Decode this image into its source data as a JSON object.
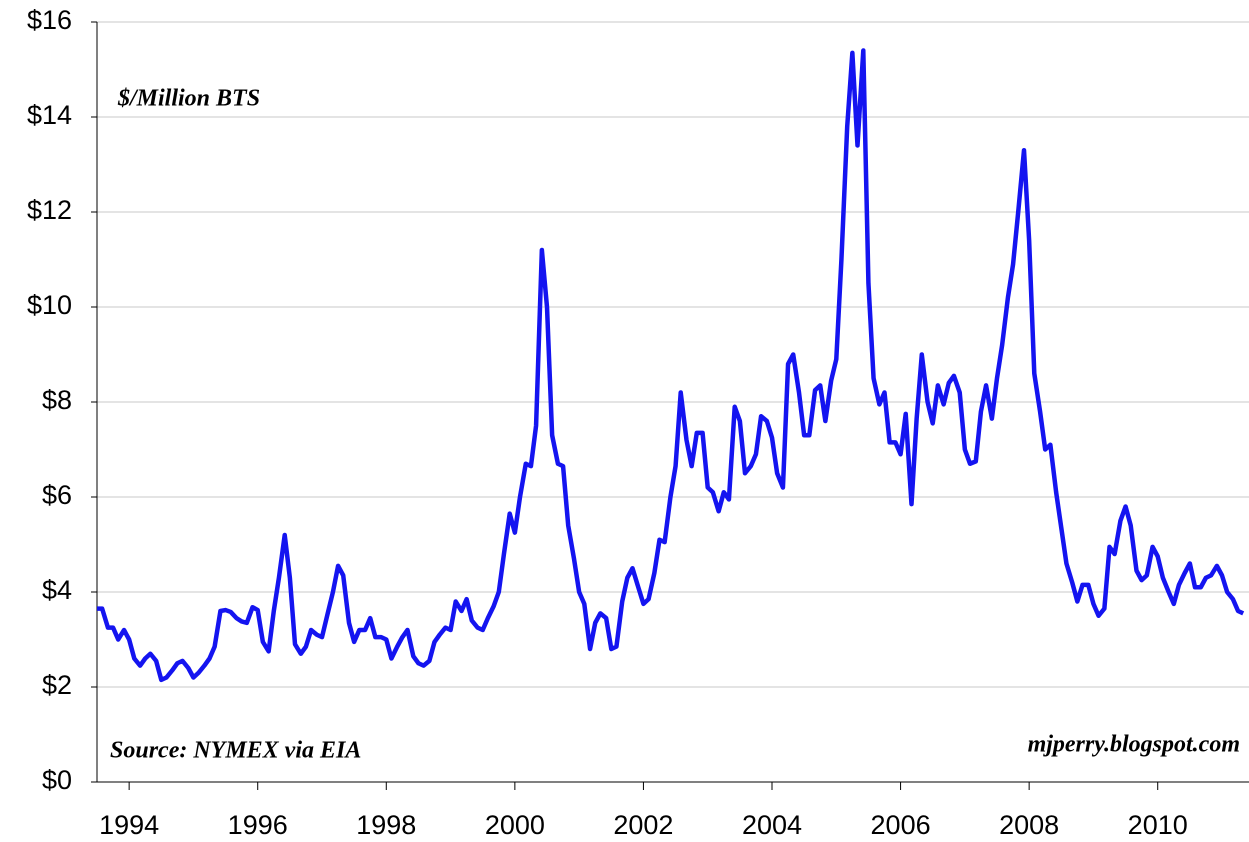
{
  "chart_data": {
    "type": "line",
    "annotations": [
      "$/Million BTS",
      "Source: NYMEX via EIA",
      "mjperry.blogspot.com"
    ],
    "color": "#1414f0",
    "grid": true,
    "xlim": [
      1994,
      2011.92
    ],
    "ylim": [
      0,
      16
    ],
    "yticks": [
      {
        "value": 0,
        "label": "$0"
      },
      {
        "value": 2,
        "label": "$2"
      },
      {
        "value": 4,
        "label": "$4"
      },
      {
        "value": 6,
        "label": "$6"
      },
      {
        "value": 8,
        "label": "$8"
      },
      {
        "value": 10,
        "label": "$10"
      },
      {
        "value": 12,
        "label": "$12"
      },
      {
        "value": 14,
        "label": "$14"
      },
      {
        "value": 16,
        "label": "$16"
      }
    ],
    "xticks": [
      {
        "value": 1994.5,
        "label": "1994"
      },
      {
        "value": 1996.5,
        "label": "1996"
      },
      {
        "value": 1998.5,
        "label": "1998"
      },
      {
        "value": 2000.5,
        "label": "2000"
      },
      {
        "value": 2002.5,
        "label": "2002"
      },
      {
        "value": 2004.5,
        "label": "2004"
      },
      {
        "value": 2006.5,
        "label": "2006"
      },
      {
        "value": 2008.5,
        "label": "2008"
      },
      {
        "value": 2010.5,
        "label": "2010"
      }
    ],
    "x": [
      1994,
      1994.08,
      1994.17,
      1994.25,
      1994.33,
      1994.42,
      1994.5,
      1994.58,
      1994.67,
      1994.75,
      1994.83,
      1994.92,
      1995,
      1995.08,
      1995.17,
      1995.25,
      1995.33,
      1995.42,
      1995.5,
      1995.58,
      1995.67,
      1995.75,
      1995.83,
      1995.92,
      1996,
      1996.08,
      1996.17,
      1996.25,
      1996.33,
      1996.42,
      1996.5,
      1996.58,
      1996.67,
      1996.75,
      1996.83,
      1996.92,
      1997,
      1997.08,
      1997.17,
      1997.25,
      1997.33,
      1997.42,
      1997.5,
      1997.58,
      1997.67,
      1997.75,
      1997.83,
      1997.92,
      1998,
      1998.08,
      1998.17,
      1998.25,
      1998.33,
      1998.42,
      1998.5,
      1998.58,
      1998.67,
      1998.75,
      1998.83,
      1998.92,
      1999,
      1999.08,
      1999.17,
      1999.25,
      1999.33,
      1999.42,
      1999.5,
      1999.58,
      1999.67,
      1999.75,
      1999.83,
      1999.92,
      2000,
      2000.08,
      2000.17,
      2000.25,
      2000.33,
      2000.42,
      2000.5,
      2000.58,
      2000.67,
      2000.75,
      2000.83,
      2000.92,
      2001,
      2001.08,
      2001.17,
      2001.25,
      2001.33,
      2001.42,
      2001.5,
      2001.58,
      2001.67,
      2001.75,
      2001.83,
      2001.92,
      2002,
      2002.08,
      2002.17,
      2002.25,
      2002.33,
      2002.42,
      2002.5,
      2002.58,
      2002.67,
      2002.75,
      2002.83,
      2002.92,
      2003,
      2003.08,
      2003.17,
      2003.25,
      2003.33,
      2003.42,
      2003.5,
      2003.58,
      2003.67,
      2003.75,
      2003.83,
      2003.92,
      2004,
      2004.08,
      2004.17,
      2004.25,
      2004.33,
      2004.42,
      2004.5,
      2004.58,
      2004.67,
      2004.75,
      2004.83,
      2004.92,
      2005,
      2005.08,
      2005.17,
      2005.25,
      2005.33,
      2005.42,
      2005.5,
      2005.58,
      2005.67,
      2005.75,
      2005.83,
      2005.92,
      2006,
      2006.08,
      2006.17,
      2006.25,
      2006.33,
      2006.42,
      2006.5,
      2006.58,
      2006.67,
      2006.75,
      2006.83,
      2006.92,
      2007,
      2007.08,
      2007.17,
      2007.25,
      2007.33,
      2007.42,
      2007.5,
      2007.58,
      2007.67,
      2007.75,
      2007.83,
      2007.92,
      2008,
      2008.08,
      2008.17,
      2008.25,
      2008.33,
      2008.42,
      2008.5,
      2008.58,
      2008.67,
      2008.75,
      2008.83,
      2008.92,
      2009,
      2009.08,
      2009.17,
      2009.25,
      2009.33,
      2009.42,
      2009.5,
      2009.58,
      2009.67,
      2009.75,
      2009.83,
      2009.92,
      2010,
      2010.08,
      2010.17,
      2010.25,
      2010.33,
      2010.42,
      2010.5,
      2010.58,
      2010.67,
      2010.75,
      2010.83,
      2010.92,
      2011,
      2011.08,
      2011.17,
      2011.25,
      2011.33,
      2011.42,
      2011.5,
      2011.58,
      2011.67,
      2011.75,
      2011.83
    ],
    "values": [
      3.65,
      3.65,
      3.25,
      3.25,
      3.0,
      3.2,
      3.0,
      2.6,
      2.45,
      2.6,
      2.7,
      2.55,
      2.15,
      2.2,
      2.35,
      2.5,
      2.55,
      2.4,
      2.2,
      2.3,
      2.45,
      2.6,
      2.85,
      3.6,
      3.62,
      3.58,
      3.45,
      3.38,
      3.35,
      3.68,
      3.62,
      2.95,
      2.75,
      3.6,
      4.3,
      5.2,
      4.3,
      2.9,
      2.7,
      2.85,
      3.2,
      3.1,
      3.05,
      3.5,
      4.0,
      4.55,
      4.35,
      3.35,
      2.95,
      3.2,
      3.2,
      3.45,
      3.05,
      3.05,
      3.0,
      2.6,
      2.85,
      3.05,
      3.2,
      2.65,
      2.5,
      2.45,
      2.55,
      2.95,
      3.1,
      3.25,
      3.2,
      3.8,
      3.6,
      3.85,
      3.4,
      3.25,
      3.2,
      3.45,
      3.7,
      4.0,
      4.8,
      5.65,
      5.25,
      6.0,
      6.7,
      6.65,
      7.5,
      11.2,
      10.0,
      7.3,
      6.7,
      6.65,
      5.4,
      4.7,
      4.0,
      3.75,
      2.8,
      3.35,
      3.55,
      3.45,
      2.8,
      2.85,
      3.8,
      4.3,
      4.5,
      4.1,
      3.75,
      3.85,
      4.4,
      5.1,
      5.05,
      6.0,
      6.65,
      8.2,
      7.2,
      6.65,
      7.35,
      7.35,
      6.2,
      6.1,
      5.7,
      6.1,
      5.95,
      7.9,
      7.6,
      6.5,
      6.65,
      6.9,
      7.7,
      7.6,
      7.25,
      6.5,
      6.2,
      8.8,
      9.0,
      8.2,
      7.3,
      7.3,
      8.25,
      8.35,
      7.6,
      8.45,
      8.9,
      11.0,
      13.8,
      15.35,
      13.4,
      15.4,
      10.5,
      8.5,
      7.95,
      8.2,
      7.15,
      7.15,
      6.9,
      7.75,
      5.85,
      7.65,
      9.0,
      8.0,
      7.55,
      8.35,
      7.95,
      8.4,
      8.55,
      8.2,
      7.0,
      6.7,
      6.75,
      7.8,
      8.35,
      7.65,
      8.5,
      9.2,
      10.2,
      10.9,
      12.0,
      13.3,
      11.4,
      8.6,
      7.8,
      7.0,
      7.1,
      6.1,
      5.35,
      4.6,
      4.2,
      3.8,
      4.15,
      4.15,
      3.75,
      3.5,
      3.65,
      4.95,
      4.8,
      5.5,
      5.8,
      5.4,
      4.45,
      4.25,
      4.35,
      4.95,
      4.75,
      4.3,
      4.0,
      3.75,
      4.15,
      4.4,
      4.6,
      4.1,
      4.1,
      4.3,
      4.35,
      4.55,
      4.35,
      4.0,
      3.85,
      3.6,
      3.55
    ]
  }
}
